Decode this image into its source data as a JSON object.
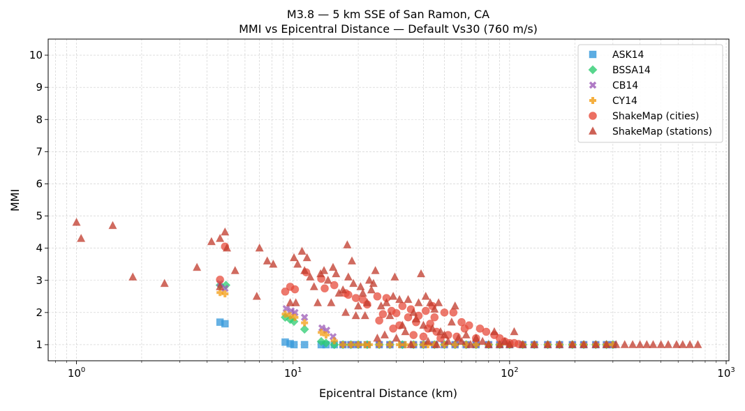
{
  "chart_data": {
    "type": "scatter",
    "title": "M3.8 — 5 km SSE of San Ramon, CA",
    "subtitle": "MMI vs Epicentral Distance — Default Vs30 (760 m/s)",
    "xlabel": "Epicentral Distance (km)",
    "ylabel": "MMI",
    "xscale": "log",
    "xlim": [
      0.74,
      1030
    ],
    "ylim": [
      0.5,
      10.5
    ],
    "xticks": [
      {
        "v": 1,
        "base": "10",
        "exp": "0"
      },
      {
        "v": 10,
        "base": "10",
        "exp": "1"
      },
      {
        "v": 100,
        "base": "10",
        "exp": "2"
      },
      {
        "v": 1000,
        "base": "10",
        "exp": "3"
      }
    ],
    "yticks": [
      "1",
      "2",
      "3",
      "4",
      "5",
      "6",
      "7",
      "8",
      "9",
      "10"
    ],
    "grid": true,
    "legend_position": "top-right",
    "series": [
      {
        "name": "ASK14",
        "marker": "square",
        "color": "#3498db",
        "points": [
          [
            4.6,
            1.7
          ],
          [
            4.85,
            1.65
          ],
          [
            9.2,
            1.08
          ],
          [
            9.7,
            1.03
          ],
          [
            10.1,
            1.0
          ],
          [
            11.3,
            1.0
          ],
          [
            13.5,
            1.0
          ],
          [
            14.2,
            1.0
          ],
          [
            15.5,
            1.0
          ],
          [
            17,
            1.0
          ],
          [
            18.5,
            1.0
          ],
          [
            20,
            1.0
          ],
          [
            22,
            1.0
          ],
          [
            25,
            1.0
          ],
          [
            28,
            1.0
          ],
          [
            32,
            1.0
          ],
          [
            36,
            1.0
          ],
          [
            40,
            1.0
          ],
          [
            45,
            1.0
          ],
          [
            50,
            1.0
          ],
          [
            56,
            1.0
          ],
          [
            63,
            1.0
          ],
          [
            70,
            1.0
          ],
          [
            80,
            1.0
          ],
          [
            90,
            1.0
          ],
          [
            100,
            1.0
          ],
          [
            115,
            1.0
          ],
          [
            130,
            1.0
          ],
          [
            150,
            1.0
          ],
          [
            170,
            1.0
          ],
          [
            195,
            1.0
          ],
          [
            220,
            1.0
          ],
          [
            250,
            1.0
          ],
          [
            280,
            1.0
          ],
          [
            300,
            1.0
          ]
        ]
      },
      {
        "name": "BSSA14",
        "marker": "diamond",
        "color": "#2ecc71",
        "points": [
          [
            4.6,
            2.85
          ],
          [
            4.9,
            2.85
          ],
          [
            9.2,
            1.85
          ],
          [
            9.7,
            1.78
          ],
          [
            10.1,
            1.72
          ],
          [
            11.3,
            1.48
          ],
          [
            13.5,
            1.1
          ],
          [
            14.2,
            1.05
          ],
          [
            15.5,
            1.0
          ],
          [
            17,
            1.0
          ],
          [
            18.5,
            1.0
          ],
          [
            20,
            1.0
          ],
          [
            22,
            1.0
          ],
          [
            25,
            1.0
          ],
          [
            28,
            1.0
          ],
          [
            32,
            1.0
          ],
          [
            36,
            1.0
          ],
          [
            40,
            1.0
          ],
          [
            45,
            1.0
          ],
          [
            50,
            1.0
          ],
          [
            56,
            1.0
          ],
          [
            63,
            1.0
          ],
          [
            70,
            1.0
          ],
          [
            80,
            1.0
          ],
          [
            90,
            1.0
          ],
          [
            100,
            1.0
          ],
          [
            115,
            1.0
          ],
          [
            130,
            1.0
          ],
          [
            150,
            1.0
          ],
          [
            170,
            1.0
          ],
          [
            195,
            1.0
          ],
          [
            220,
            1.0
          ],
          [
            250,
            1.0
          ],
          [
            280,
            1.0
          ],
          [
            300,
            1.0
          ]
        ]
      },
      {
        "name": "CB14",
        "marker": "x",
        "color": "#9b59b6",
        "points": [
          [
            4.6,
            2.9
          ],
          [
            4.85,
            2.75
          ],
          [
            9.3,
            2.12
          ],
          [
            9.8,
            2.05
          ],
          [
            10.2,
            2.0
          ],
          [
            11.3,
            1.85
          ],
          [
            13.6,
            1.52
          ],
          [
            14.3,
            1.45
          ],
          [
            15.3,
            1.25
          ],
          [
            17,
            1.0
          ],
          [
            18.5,
            1.0
          ],
          [
            20,
            1.0
          ],
          [
            22,
            1.0
          ],
          [
            25,
            1.0
          ],
          [
            28,
            1.0
          ],
          [
            32,
            1.0
          ],
          [
            36,
            1.0
          ],
          [
            40,
            1.0
          ],
          [
            45,
            1.0
          ],
          [
            50,
            1.0
          ],
          [
            56,
            1.0
          ],
          [
            63,
            1.0
          ],
          [
            70,
            1.0
          ],
          [
            80,
            1.0
          ],
          [
            90,
            1.0
          ],
          [
            100,
            1.0
          ],
          [
            115,
            1.0
          ],
          [
            130,
            1.0
          ],
          [
            150,
            1.0
          ],
          [
            170,
            1.0
          ],
          [
            195,
            1.0
          ],
          [
            220,
            1.0
          ],
          [
            250,
            1.0
          ],
          [
            280,
            1.0
          ],
          [
            300,
            1.0
          ]
        ]
      },
      {
        "name": "CY14",
        "marker": "plus",
        "color": "#f39c12",
        "points": [
          [
            4.6,
            2.62
          ],
          [
            4.85,
            2.58
          ],
          [
            9.2,
            1.95
          ],
          [
            9.7,
            1.9
          ],
          [
            10.2,
            1.85
          ],
          [
            11.3,
            1.68
          ],
          [
            13.5,
            1.38
          ],
          [
            14.2,
            1.3
          ],
          [
            15.5,
            1.12
          ],
          [
            17,
            1.0
          ],
          [
            18.5,
            1.0
          ],
          [
            20,
            1.0
          ],
          [
            21.5,
            1.0
          ],
          [
            22.5,
            1.0
          ],
          [
            25,
            1.0
          ],
          [
            28,
            1.0
          ],
          [
            31,
            1.0
          ],
          [
            33,
            1.0
          ],
          [
            36,
            1.0
          ],
          [
            40,
            1.0
          ],
          [
            42,
            1.0
          ],
          [
            45,
            1.0
          ],
          [
            50,
            1.0
          ],
          [
            56,
            1.0
          ],
          [
            63,
            1.0
          ],
          [
            70,
            1.0
          ],
          [
            80,
            1.0
          ],
          [
            90,
            1.0
          ],
          [
            100,
            1.0
          ],
          [
            115,
            1.0
          ],
          [
            130,
            1.0
          ],
          [
            150,
            1.0
          ],
          [
            170,
            1.0
          ],
          [
            195,
            1.0
          ],
          [
            220,
            1.0
          ],
          [
            250,
            1.0
          ],
          [
            280,
            1.0
          ],
          [
            300,
            1.0
          ]
        ]
      },
      {
        "name": "ShakeMap (cities)",
        "marker": "circle",
        "color": "#e74c3c",
        "points": [
          [
            4.6,
            3.02
          ],
          [
            4.85,
            4.05
          ],
          [
            9.2,
            2.65
          ],
          [
            9.7,
            2.8
          ],
          [
            10.2,
            2.72
          ],
          [
            11.5,
            3.25
          ],
          [
            13.5,
            3.05
          ],
          [
            14,
            2.75
          ],
          [
            15.5,
            2.85
          ],
          [
            17.5,
            2.6
          ],
          [
            18,
            2.55
          ],
          [
            19.5,
            2.45
          ],
          [
            21,
            2.4
          ],
          [
            22,
            2.25
          ],
          [
            24.5,
            2.5
          ],
          [
            25,
            1.75
          ],
          [
            26,
            1.95
          ],
          [
            27,
            2.45
          ],
          [
            28.5,
            2.05
          ],
          [
            29,
            1.5
          ],
          [
            30,
            1.98
          ],
          [
            31,
            1.6
          ],
          [
            32,
            2.2
          ],
          [
            34,
            1.85
          ],
          [
            35,
            2.1
          ],
          [
            36,
            1.3
          ],
          [
            37,
            1.7
          ],
          [
            38,
            1.9
          ],
          [
            40,
            1.25
          ],
          [
            41,
            2.05
          ],
          [
            42,
            1.5
          ],
          [
            43,
            1.65
          ],
          [
            44,
            2.2
          ],
          [
            45,
            1.85
          ],
          [
            46,
            1.4
          ],
          [
            48,
            1.2
          ],
          [
            50,
            2.0
          ],
          [
            52,
            1.3
          ],
          [
            55,
            2.0
          ],
          [
            57,
            1.25
          ],
          [
            60,
            1.7
          ],
          [
            62,
            1.5
          ],
          [
            65,
            1.6
          ],
          [
            70,
            1.2
          ],
          [
            73,
            1.5
          ],
          [
            78,
            1.4
          ],
          [
            85,
            1.3
          ],
          [
            90,
            1.2
          ],
          [
            95,
            1.1
          ],
          [
            100,
            1.05
          ],
          [
            105,
            1.05
          ],
          [
            110,
            1.02
          ]
        ]
      },
      {
        "name": "ShakeMap (stations)",
        "marker": "triangle",
        "color": "#c0392b",
        "points": [
          [
            1.0,
            4.8
          ],
          [
            1.05,
            4.3
          ],
          [
            1.47,
            4.7
          ],
          [
            1.82,
            3.1
          ],
          [
            2.55,
            2.9
          ],
          [
            3.6,
            3.4
          ],
          [
            4.2,
            4.2
          ],
          [
            4.6,
            4.3
          ],
          [
            4.85,
            4.5
          ],
          [
            4.95,
            4.0
          ],
          [
            5.4,
            3.3
          ],
          [
            4.6,
            2.8
          ],
          [
            6.8,
            2.5
          ],
          [
            7.0,
            4.0
          ],
          [
            7.6,
            3.6
          ],
          [
            8.1,
            3.5
          ],
          [
            9.7,
            2.3
          ],
          [
            10.1,
            3.7
          ],
          [
            10.3,
            2.3
          ],
          [
            10.5,
            3.5
          ],
          [
            11,
            3.9
          ],
          [
            11.3,
            3.3
          ],
          [
            11.6,
            3.7
          ],
          [
            12,
            3.1
          ],
          [
            12.5,
            2.8
          ],
          [
            13,
            2.3
          ],
          [
            13.4,
            3.2
          ],
          [
            13.9,
            3.3
          ],
          [
            14.5,
            3.0
          ],
          [
            15,
            2.3
          ],
          [
            15.3,
            3.4
          ],
          [
            15.8,
            3.2
          ],
          [
            16.3,
            2.6
          ],
          [
            17,
            2.7
          ],
          [
            17.5,
            2.0
          ],
          [
            17.8,
            4.1
          ],
          [
            18,
            3.1
          ],
          [
            18.7,
            3.6
          ],
          [
            19,
            2.9
          ],
          [
            19.5,
            1.9
          ],
          [
            20,
            2.2
          ],
          [
            20.5,
            2.8
          ],
          [
            21,
            2.6
          ],
          [
            21.5,
            1.9
          ],
          [
            22,
            2.3
          ],
          [
            22.5,
            3.0
          ],
          [
            23,
            2.7
          ],
          [
            23.5,
            2.9
          ],
          [
            24,
            3.3
          ],
          [
            24.5,
            1.2
          ],
          [
            25.5,
            2.2
          ],
          [
            26.5,
            1.3
          ],
          [
            27,
            2.3
          ],
          [
            28,
            1.9
          ],
          [
            29,
            2.5
          ],
          [
            29.5,
            3.1
          ],
          [
            30,
            1.2
          ],
          [
            31,
            2.4
          ],
          [
            32,
            1.6
          ],
          [
            33,
            1.4
          ],
          [
            34,
            2.4
          ],
          [
            35,
            1.0
          ],
          [
            36,
            2.0
          ],
          [
            37,
            1.8
          ],
          [
            38,
            2.3
          ],
          [
            39,
            3.2
          ],
          [
            40,
            1.6
          ],
          [
            41,
            2.5
          ],
          [
            42,
            1.1
          ],
          [
            43,
            2.3
          ],
          [
            44,
            1.5
          ],
          [
            45,
            2.1
          ],
          [
            46,
            1.0
          ],
          [
            47,
            2.3
          ],
          [
            48,
            1.4
          ],
          [
            50,
            1.3
          ],
          [
            52,
            1.1
          ],
          [
            54,
            1.7
          ],
          [
            56,
            2.2
          ],
          [
            58,
            1.2
          ],
          [
            60,
            1.1
          ],
          [
            63,
            1.3
          ],
          [
            66,
            1.0
          ],
          [
            70,
            1.2
          ],
          [
            75,
            1.1
          ],
          [
            80,
            1.0
          ],
          [
            85,
            1.4
          ],
          [
            90,
            1.0
          ],
          [
            95,
            1.1
          ],
          [
            100,
            1.0
          ],
          [
            105,
            1.4
          ],
          [
            115,
            1.0
          ],
          [
            130,
            1.0
          ],
          [
            150,
            1.0
          ],
          [
            170,
            1.0
          ],
          [
            195,
            1.0
          ],
          [
            220,
            1.0
          ],
          [
            250,
            1.0
          ],
          [
            280,
            1.0
          ],
          [
            310,
            1.0
          ],
          [
            340,
            1.0
          ],
          [
            370,
            1.0
          ],
          [
            400,
            1.0
          ],
          [
            430,
            1.0
          ],
          [
            460,
            1.0
          ],
          [
            500,
            1.0
          ],
          [
            540,
            1.0
          ],
          [
            590,
            1.0
          ],
          [
            630,
            1.0
          ],
          [
            680,
            1.0
          ],
          [
            740,
            1.0
          ]
        ]
      }
    ]
  }
}
